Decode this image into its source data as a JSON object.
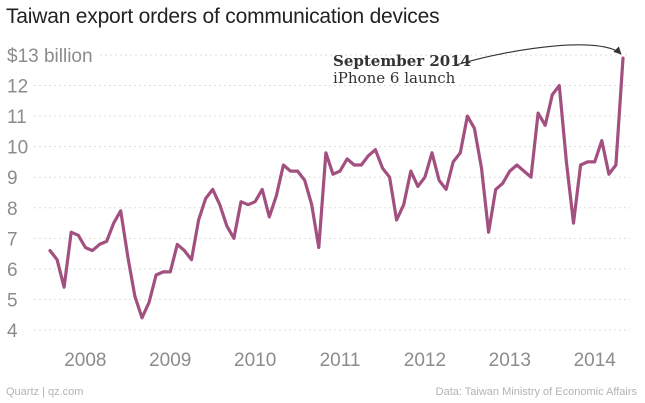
{
  "title": "Taiwan export orders of communication devices",
  "footer": {
    "source_left": "Quartz | qz.com",
    "source_right": "Data: Taiwan Ministry of Economic Affairs"
  },
  "colors": {
    "series": "#a2507f",
    "ticks": "#8c8c8c",
    "grid": "#dddddd",
    "annotation": "#333333"
  },
  "chart_data": {
    "type": "line",
    "title": "Taiwan export orders of communication devices",
    "xlabel": "",
    "ylabel": "",
    "y_unit_top_label": "$13 billion",
    "ylim": [
      3.5,
      13.3
    ],
    "yticks": [
      {
        "value": 4,
        "label": "4"
      },
      {
        "value": 5,
        "label": "5"
      },
      {
        "value": 6,
        "label": "6"
      },
      {
        "value": 7,
        "label": "7"
      },
      {
        "value": 8,
        "label": "8"
      },
      {
        "value": 9,
        "label": "9"
      },
      {
        "value": 10,
        "label": "10"
      },
      {
        "value": 11,
        "label": "11"
      },
      {
        "value": 12,
        "label": "12"
      },
      {
        "value": 13,
        "label": "$13 billion"
      }
    ],
    "x_start": "2008-01",
    "xticks": [
      {
        "label": "2008",
        "month_index": 5
      },
      {
        "label": "2009",
        "month_index": 17
      },
      {
        "label": "2010",
        "month_index": 29
      },
      {
        "label": "2011",
        "month_index": 41
      },
      {
        "label": "2012",
        "month_index": 53
      },
      {
        "label": "2013",
        "month_index": 65
      },
      {
        "label": "2014",
        "month_index": 77
      }
    ],
    "grid": "horizontal dotted",
    "series": [
      {
        "name": "Export orders ($ billion)",
        "frequency": "monthly",
        "values": [
          6.6,
          6.3,
          5.4,
          7.2,
          7.1,
          6.7,
          6.6,
          6.8,
          6.9,
          7.5,
          7.9,
          6.4,
          5.1,
          4.4,
          4.9,
          5.8,
          5.9,
          5.9,
          6.8,
          6.6,
          6.3,
          7.6,
          8.3,
          8.6,
          8.1,
          7.4,
          7.0,
          8.2,
          8.1,
          8.2,
          8.6,
          7.7,
          8.4,
          9.4,
          9.2,
          9.2,
          8.9,
          8.1,
          6.7,
          9.8,
          9.1,
          9.2,
          9.6,
          9.4,
          9.4,
          9.7,
          9.9,
          9.3,
          9.0,
          7.6,
          8.1,
          9.2,
          8.7,
          9.0,
          9.8,
          8.9,
          8.6,
          9.5,
          9.8,
          11.0,
          10.6,
          9.3,
          7.2,
          8.6,
          8.8,
          9.2,
          9.4,
          9.2,
          9.0,
          11.1,
          10.7,
          11.7,
          12.0,
          9.5,
          7.5,
          9.4,
          9.5,
          9.5,
          10.2,
          9.1,
          9.4,
          12.9
        ]
      }
    ],
    "annotations": [
      {
        "title": "September 2014",
        "text": "iPhone 6 launch",
        "points_to_month_index": 81
      }
    ]
  }
}
